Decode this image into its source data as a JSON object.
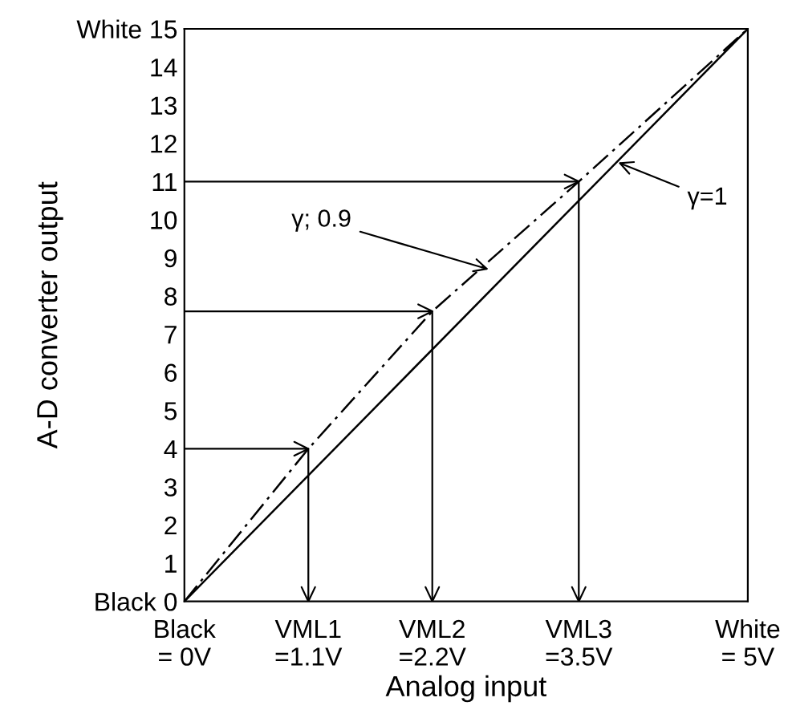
{
  "chart_data": {
    "type": "line",
    "xlabel": "Analog input",
    "ylabel": "A-D converter output",
    "xlim": [
      0,
      5
    ],
    "ylim": [
      0,
      15
    ],
    "xticks": [
      {
        "value": 0,
        "label": "Black\n= 0V"
      },
      {
        "value": 1.1,
        "label": "VML1\n=1.1V"
      },
      {
        "value": 2.2,
        "label": "VML2\n=2.2V"
      },
      {
        "value": 3.5,
        "label": "VML3\n=3.5V"
      },
      {
        "value": 5,
        "label": "White\n= 5V"
      }
    ],
    "yticks": [
      {
        "value": 0,
        "label": "Black 0"
      },
      1,
      2,
      3,
      4,
      5,
      6,
      7,
      8,
      9,
      10,
      11,
      12,
      13,
      14,
      {
        "value": 15,
        "label": "White 15"
      }
    ],
    "grid": false,
    "legend": false,
    "marker": "none",
    "series": [
      {
        "color": "#000000",
        "line_style": "solid",
        "x": [
          0,
          5
        ],
        "values": [
          0,
          15
        ]
      },
      {
        "color": "#000000",
        "line_style": "dashdot",
        "x": [
          0,
          1.1,
          2.2,
          3.5,
          5
        ],
        "values": [
          0,
          4,
          7.6,
          11,
          15
        ]
      },
      {
        "type": "line",
        "color": "#000000",
        "line_style": "solid",
        "x": [
          0,
          1.1,
          1.1
        ],
        "values": [
          4,
          4,
          0
        ]
      },
      {
        "type": "line",
        "color": "#000000",
        "line_style": "solid",
        "x": [
          0,
          2.2,
          2.2
        ],
        "values": [
          7.6,
          7.6,
          0
        ]
      },
      {
        "type": "line",
        "color": "#000000",
        "line_style": "solid",
        "x": [
          0,
          3.5,
          3.5
        ],
        "values": [
          11,
          11,
          0
        ]
      }
    ],
    "annotations": [
      {
        "text": "γ; 0.9",
        "x": 2.7,
        "y": 8.7
      },
      {
        "text": "γ=1",
        "x": 3.85,
        "y": 11.5
      }
    ]
  }
}
